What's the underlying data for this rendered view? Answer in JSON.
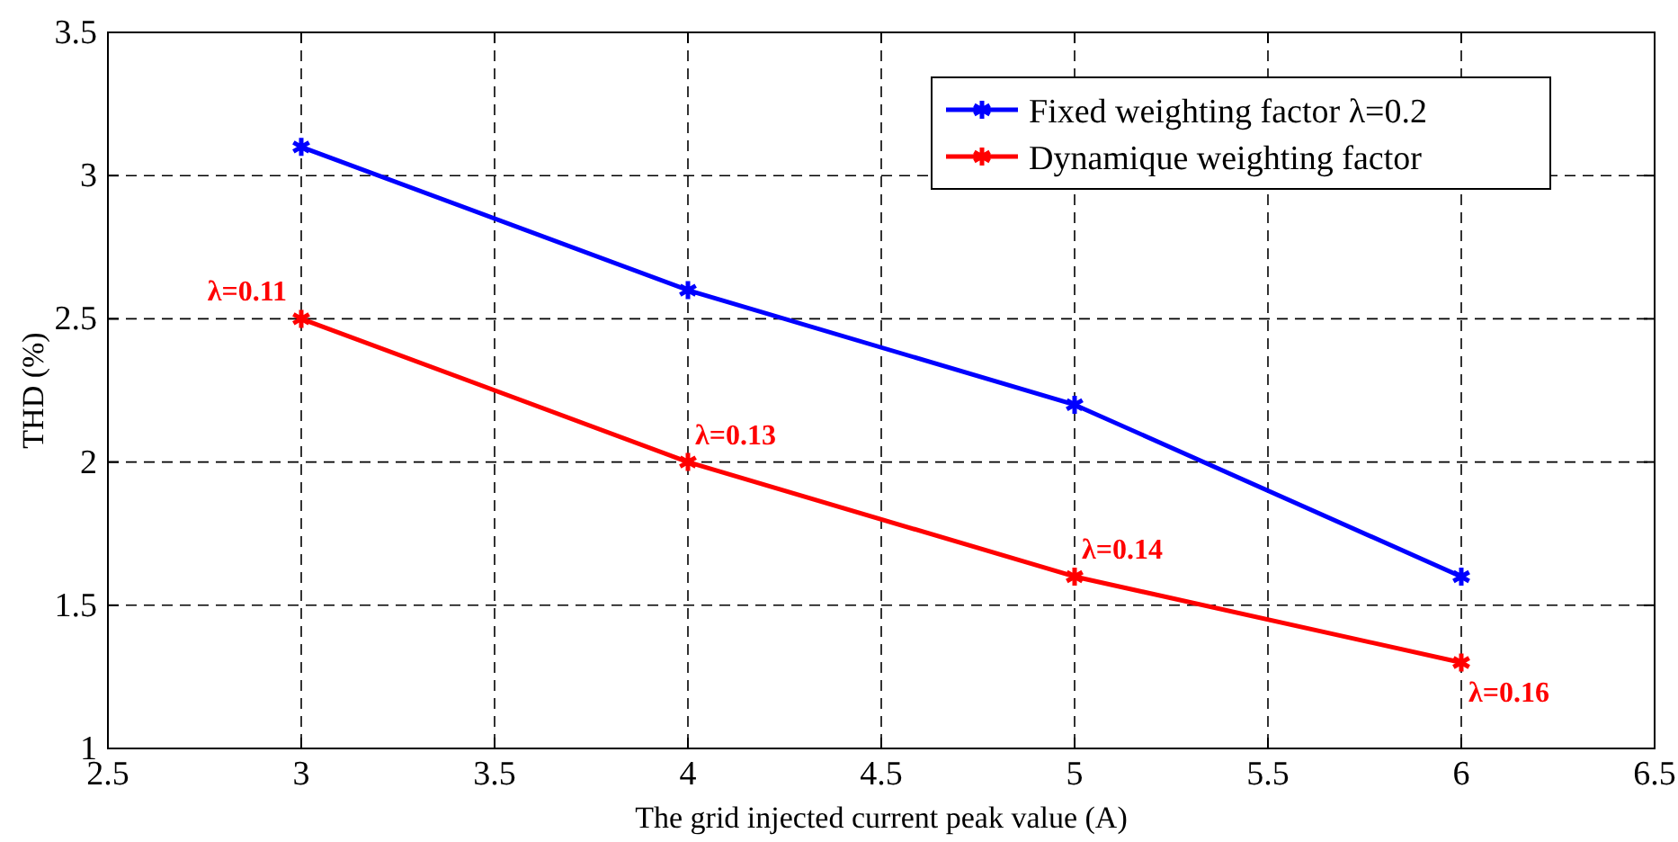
{
  "chart_data": {
    "type": "line",
    "xlabel": "The grid injected current peak value (A)",
    "ylabel": "THD (%)",
    "x": [
      3,
      4,
      5,
      6
    ],
    "series": [
      {
        "name": "Fixed weighting factor λ=0.2",
        "color": "#0000ff",
        "values": [
          3.1,
          2.6,
          2.2,
          1.6
        ]
      },
      {
        "name": "Dynamique weighting factor",
        "color": "#ff0000",
        "values": [
          2.5,
          2.0,
          1.6,
          1.3
        ]
      }
    ],
    "xlim": [
      2.5,
      6.5
    ],
    "xticks": [
      2.5,
      3,
      3.5,
      4,
      4.5,
      5,
      5.5,
      6,
      6.5
    ],
    "ylim": [
      1,
      3.5
    ],
    "yticks": [
      1,
      1.5,
      2,
      2.5,
      3,
      3.5
    ],
    "annotations": [
      {
        "text": "λ=0.11",
        "x": 3,
        "y": 2.5
      },
      {
        "text": "λ=0.13",
        "x": 4,
        "y": 2.0
      },
      {
        "text": "λ=0.14",
        "x": 5,
        "y": 1.6
      },
      {
        "text": "λ=0.16",
        "x": 6,
        "y": 1.3
      }
    ],
    "grid": true,
    "legend": "top right",
    "marker": "cross",
    "line_style": "solid"
  }
}
